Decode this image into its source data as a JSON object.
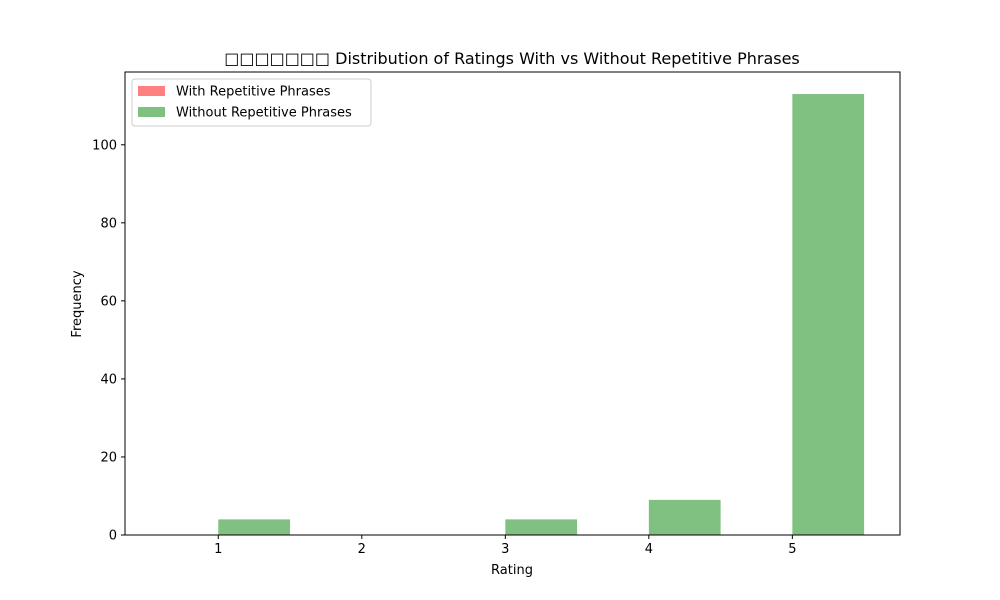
{
  "chart_data": {
    "type": "bar",
    "title": "□□□□□□□ Distribution of Ratings With vs Without Repetitive Phrases",
    "xlabel": "Rating",
    "ylabel": "Frequency",
    "x_ticks": [
      "1",
      "2",
      "3",
      "4",
      "5"
    ],
    "y_ticks": [
      "0",
      "20",
      "40",
      "60",
      "80",
      "100"
    ],
    "xlim": [
      0.35,
      5.75
    ],
    "ylim": [
      0,
      118.65
    ],
    "bin_width": 0.5,
    "grid": false,
    "legend_position": "top-left",
    "series": [
      {
        "name": "With Repetitive Phrases",
        "color": "#ff8080",
        "bins": []
      },
      {
        "name": "Without Repetitive Phrases",
        "color": "#80c080",
        "bins": [
          {
            "start": 1.0,
            "end": 1.5,
            "value": 4
          },
          {
            "start": 3.0,
            "end": 3.5,
            "value": 4
          },
          {
            "start": 4.0,
            "end": 4.5,
            "value": 9
          },
          {
            "start": 5.0,
            "end": 5.5,
            "value": 113
          }
        ]
      }
    ]
  }
}
